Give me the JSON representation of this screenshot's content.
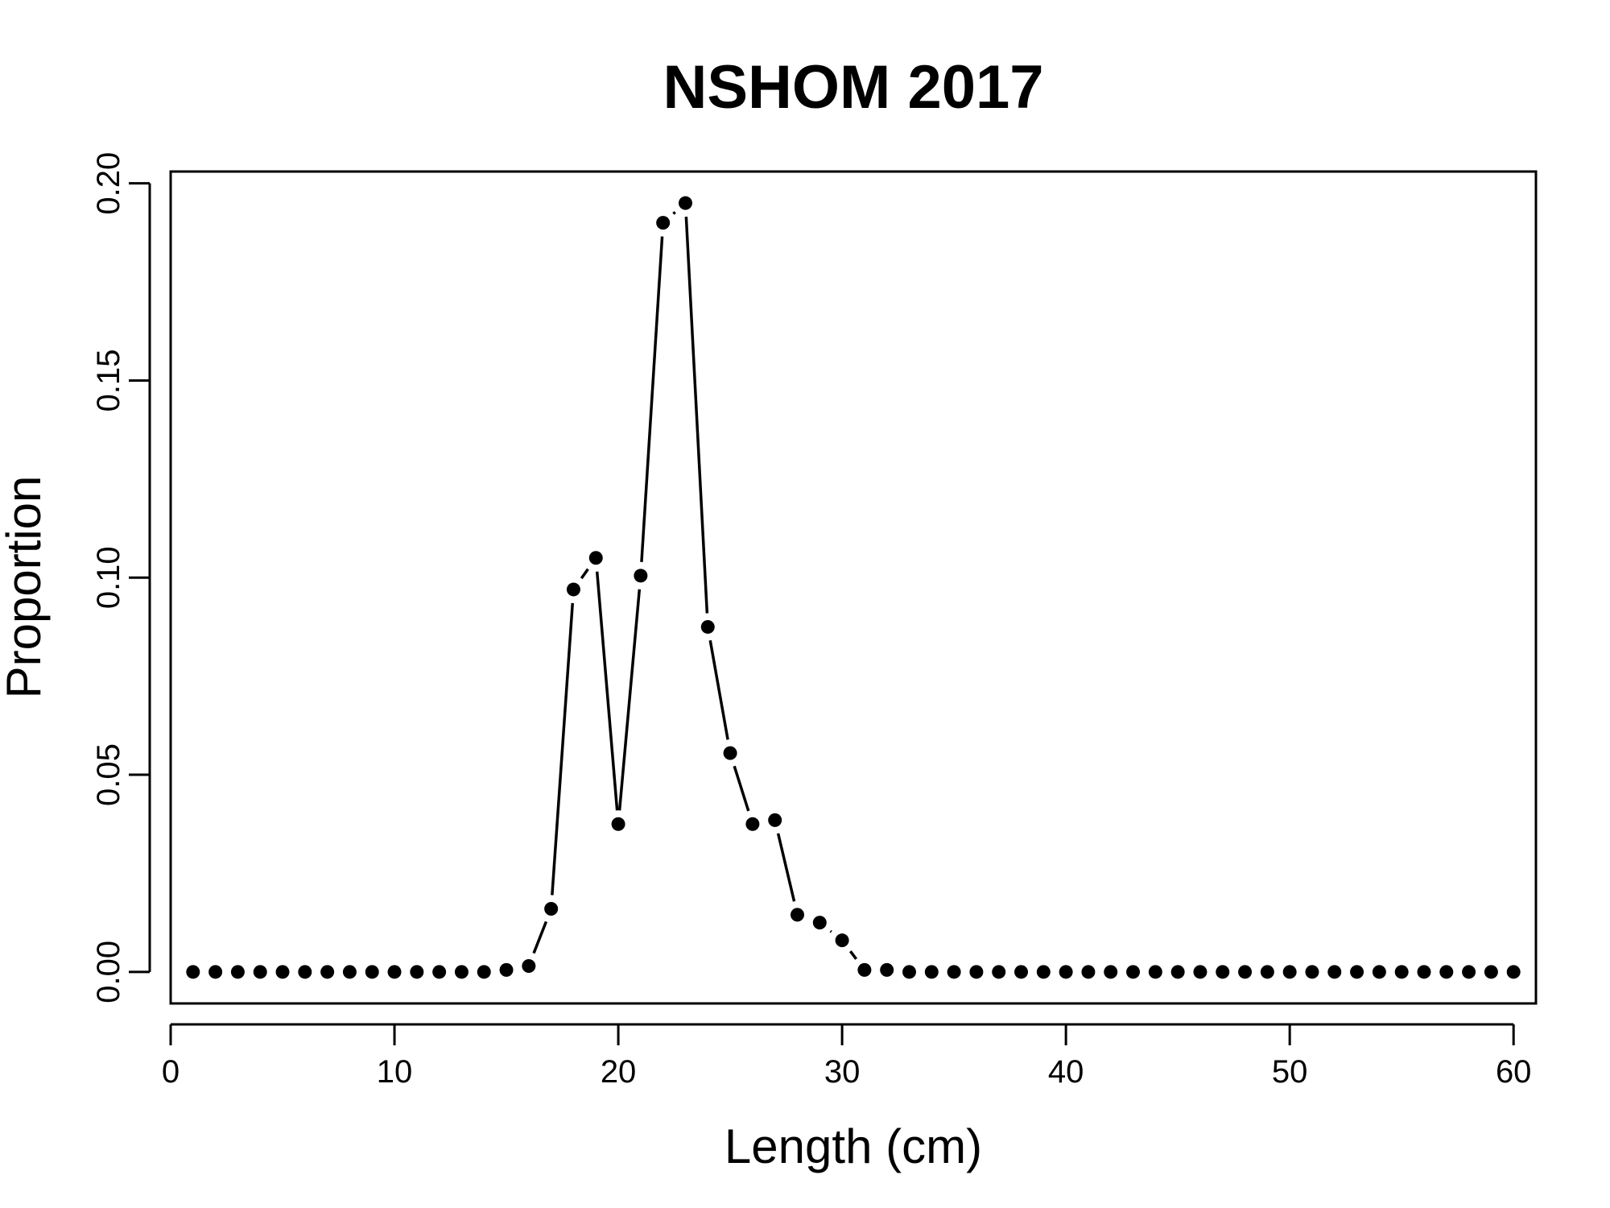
{
  "chart_data": {
    "type": "line",
    "title": "NSHOM 2017",
    "xlabel": "Length (cm)",
    "ylabel": "Proportion",
    "xlim": [
      0,
      61
    ],
    "ylim": [
      -0.008,
      0.203
    ],
    "xticks": [
      0,
      10,
      20,
      30,
      40,
      50,
      60
    ],
    "xtick_labels": [
      "0",
      "10",
      "20",
      "30",
      "40",
      "50",
      "60"
    ],
    "yticks": [
      0.0,
      0.05,
      0.1,
      0.15,
      0.2
    ],
    "ytick_labels": [
      "0.00",
      "0.05",
      "0.10",
      "0.15",
      "0.20"
    ],
    "grid": false,
    "line_style": "dashed-with-points",
    "color": "#000000",
    "x": [
      1,
      2,
      3,
      4,
      5,
      6,
      7,
      8,
      9,
      10,
      11,
      12,
      13,
      14,
      15,
      16,
      17,
      18,
      19,
      20,
      21,
      22,
      23,
      24,
      25,
      26,
      27,
      28,
      29,
      30,
      31,
      32,
      33,
      34,
      35,
      36,
      37,
      38,
      39,
      40,
      41,
      42,
      43,
      44,
      45,
      46,
      47,
      48,
      49,
      50,
      51,
      52,
      53,
      54,
      55,
      56,
      57,
      58,
      59,
      60
    ],
    "y": [
      0,
      0,
      0,
      0,
      0,
      0,
      0,
      0,
      0,
      0,
      0,
      0,
      0,
      0,
      0.0005,
      0.0015,
      0.016,
      0.097,
      0.105,
      0.0375,
      0.1005,
      0.19,
      0.195,
      0.0875,
      0.0555,
      0.0375,
      0.0385,
      0.0145,
      0.0125,
      0.008,
      0.0005,
      0.0005,
      0,
      0,
      0,
      0,
      0,
      0,
      0,
      0,
      0,
      0,
      0,
      0,
      0,
      0,
      0,
      0,
      0,
      0,
      0,
      0,
      0,
      0,
      0,
      0,
      0,
      0,
      0,
      0
    ]
  }
}
